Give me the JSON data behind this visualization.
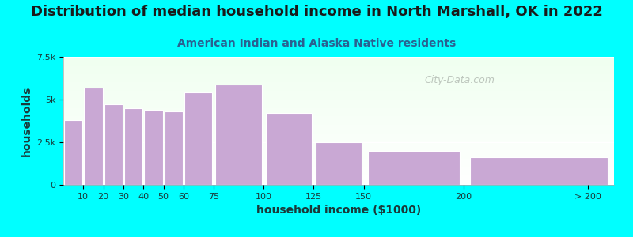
{
  "title": "Distribution of median household income in North Marshall, OK in 2022",
  "subtitle": "American Indian and Alaska Native residents",
  "xlabel": "household income ($1000)",
  "ylabel": "households",
  "bar_left_edges": [
    0,
    10,
    20,
    30,
    40,
    50,
    60,
    75,
    100,
    125,
    150,
    200
  ],
  "bar_widths": [
    10,
    10,
    10,
    10,
    10,
    10,
    15,
    25,
    25,
    25,
    50,
    75
  ],
  "bar_values": [
    3800,
    5700,
    4700,
    4500,
    4400,
    4300,
    5400,
    5900,
    4200,
    2500,
    2000,
    1600
  ],
  "xtick_positions": [
    10,
    20,
    30,
    40,
    50,
    60,
    75,
    100,
    125,
    150,
    200,
    262
  ],
  "xtick_labels": [
    "10",
    "20",
    "30",
    "40",
    "50",
    "60",
    "75",
    "100",
    "125",
    "150",
    "200",
    "> 200"
  ],
  "bar_color": "#C9A8D4",
  "bar_edge_color": "#ffffff",
  "background_color": "#00FFFF",
  "plot_bg_color_top": "#f0fff0",
  "plot_bg_color_bottom": "#ffffff",
  "title_color": "#1a1a1a",
  "subtitle_color": "#2a6090",
  "axis_label_color": "#1a3a3a",
  "tick_color": "#1a3a3a",
  "ylim": [
    0,
    7500
  ],
  "xlim": [
    0,
    275
  ],
  "yticks": [
    0,
    2500,
    5000,
    7500
  ],
  "ytick_labels": [
    "0",
    "2.5k",
    "5k",
    "7.5k"
  ],
  "title_fontsize": 13,
  "subtitle_fontsize": 10,
  "axis_label_fontsize": 10,
  "tick_fontsize": 8,
  "watermark_text": "City-Data.com",
  "watermark_color": "#b0b8b0"
}
